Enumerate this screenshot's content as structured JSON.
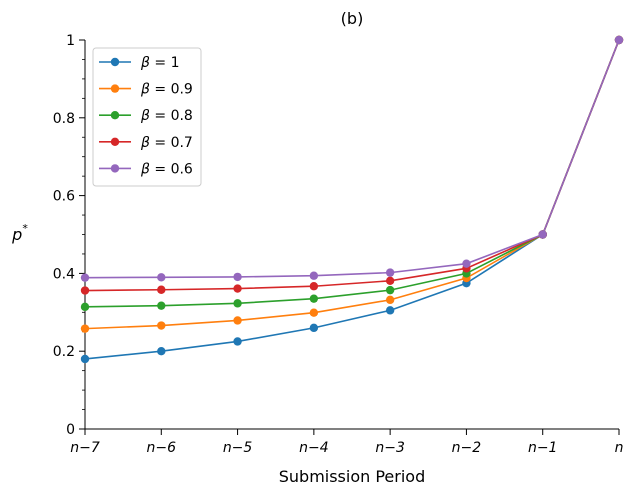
{
  "chart_data": {
    "type": "line",
    "title": "(b)",
    "xlabel": "Submission Period",
    "ylabel": "p*",
    "ylim": [
      0,
      1
    ],
    "grid": false,
    "legend_position": "top-left",
    "categories": [
      "n−7",
      "n−6",
      "n−5",
      "n−4",
      "n−3",
      "n−2",
      "n−1",
      "n"
    ],
    "y_ticks": [
      0,
      0.2,
      0.4,
      0.6,
      0.8,
      1
    ],
    "y_tick_labels": [
      "0",
      "0.2",
      "0.4",
      "0.6",
      "0.8",
      "1"
    ],
    "series": [
      {
        "name": "β = 1",
        "color": "#1f77b4",
        "values": [
          0.18,
          0.2,
          0.225,
          0.26,
          0.305,
          0.375,
          0.5,
          1.0
        ]
      },
      {
        "name": "β = 0.9",
        "color": "#ff7f0e",
        "values": [
          0.258,
          0.266,
          0.279,
          0.299,
          0.332,
          0.388,
          0.5,
          1.0
        ]
      },
      {
        "name": "β = 0.8",
        "color": "#2ca02c",
        "values": [
          0.314,
          0.317,
          0.323,
          0.335,
          0.357,
          0.4,
          0.5,
          1.0
        ]
      },
      {
        "name": "β = 0.7",
        "color": "#d62728",
        "values": [
          0.356,
          0.358,
          0.361,
          0.367,
          0.381,
          0.413,
          0.5,
          1.0
        ]
      },
      {
        "name": "β = 0.6",
        "color": "#9467bd",
        "values": [
          0.389,
          0.39,
          0.391,
          0.394,
          0.402,
          0.425,
          0.5,
          1.0
        ]
      }
    ]
  }
}
